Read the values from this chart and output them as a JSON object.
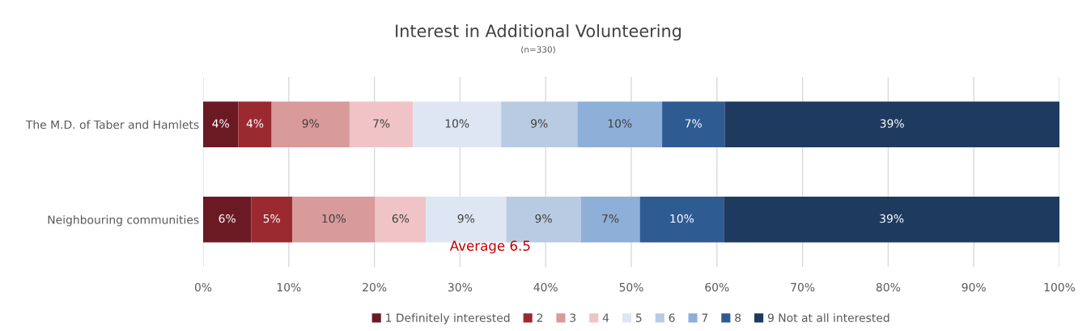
{
  "chart_data": {
    "type": "bar",
    "orientation": "horizontal",
    "stacked": true,
    "title": "Interest in Additional Volunteering",
    "subtitle": "(n=330)",
    "categories": [
      "The M.D. of Taber and Hamlets",
      "Neighbouring communities"
    ],
    "series": [
      {
        "name": "1 Definitely interested",
        "color": "#6b1a24",
        "values": [
          4.1,
          5.6
        ],
        "value_labels": [
          "4%",
          "6%"
        ]
      },
      {
        "name": "2",
        "color": "#9b2a30",
        "values": [
          3.9,
          4.8
        ],
        "value_labels": [
          "4%",
          "5%"
        ]
      },
      {
        "name": "3",
        "color": "#d99a9c",
        "values": [
          9.1,
          9.7
        ],
        "value_labels": [
          "9%",
          "10%"
        ]
      },
      {
        "name": "4",
        "color": "#f0c4c6",
        "values": [
          7.4,
          5.9
        ],
        "value_labels": [
          "7%",
          "6%"
        ]
      },
      {
        "name": "5",
        "color": "#dde6f2",
        "values": [
          10.3,
          9.4
        ],
        "value_labels": [
          "10%",
          "9%"
        ]
      },
      {
        "name": "6",
        "color": "#b8cbe2",
        "values": [
          8.9,
          8.7
        ],
        "value_labels": [
          "9%",
          "9%"
        ]
      },
      {
        "name": "7",
        "color": "#8eafd8",
        "values": [
          9.9,
          6.9
        ],
        "value_labels": [
          "10%",
          "7%"
        ]
      },
      {
        "name": "8",
        "color": "#2f5b93",
        "values": [
          7.3,
          9.8
        ],
        "value_labels": [
          "7%",
          "10%"
        ]
      },
      {
        "name": "9 Not at all interested",
        "color": "#1f3a5f",
        "values": [
          39.1,
          39.2
        ],
        "value_labels": [
          "39%",
          "39%"
        ]
      }
    ],
    "xlim": [
      0,
      100
    ],
    "xticks": [
      {
        "value": 0,
        "label": "0%"
      },
      {
        "value": 10,
        "label": "10%"
      },
      {
        "value": 20,
        "label": "20%"
      },
      {
        "value": 30,
        "label": "30%"
      },
      {
        "value": 40,
        "label": "40%"
      },
      {
        "value": 50,
        "label": "50%"
      },
      {
        "value": 60,
        "label": "60%"
      },
      {
        "value": 70,
        "label": "70%"
      },
      {
        "value": 80,
        "label": "80%"
      },
      {
        "value": 90,
        "label": "90%"
      },
      {
        "value": 100,
        "label": "100%"
      }
    ],
    "grid": "x",
    "legend": "bottom",
    "annotations": [
      "Average 6.5"
    ]
  }
}
